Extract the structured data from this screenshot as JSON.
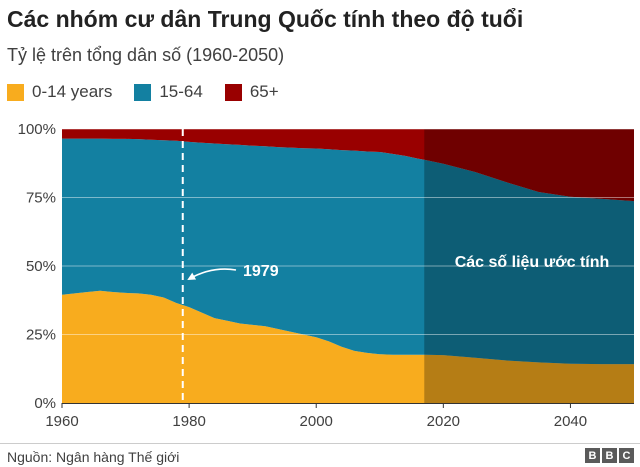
{
  "header": {
    "title": "Các nhóm cư dân Trung Quốc tính theo độ tuổi",
    "subtitle": "Tỷ lệ trên tổng dân số (1960-2050)"
  },
  "legend": [
    {
      "label": "0-14 years",
      "color": "#f8ac1e"
    },
    {
      "label": "15-64",
      "color": "#1380a1"
    },
    {
      "label": "65+",
      "color": "#990000"
    }
  ],
  "chart_data": {
    "type": "area",
    "stacked": true,
    "x": [
      1960,
      1962,
      1964,
      1966,
      1968,
      1970,
      1972,
      1974,
      1976,
      1978,
      1980,
      1982,
      1984,
      1986,
      1988,
      1990,
      1992,
      1994,
      1996,
      1998,
      2000,
      2002,
      2004,
      2006,
      2008,
      2010,
      2012,
      2014,
      2016,
      2017,
      2020,
      2025,
      2030,
      2035,
      2040,
      2045,
      2050
    ],
    "series": [
      {
        "name": "0-14 years",
        "color": "#f8ac1e",
        "values": [
          39.5,
          40.0,
          40.5,
          41.0,
          40.5,
          40.2,
          40.0,
          39.5,
          38.5,
          36.5,
          35.0,
          33.0,
          31.0,
          30.0,
          29.0,
          28.5,
          28.0,
          27.0,
          26.0,
          25.0,
          24.0,
          22.5,
          20.5,
          19.0,
          18.3,
          17.8,
          17.6,
          17.6,
          17.6,
          17.6,
          17.5,
          16.5,
          15.5,
          14.8,
          14.3,
          14.2,
          14.2
        ]
      },
      {
        "name": "15-64",
        "color": "#1380a1",
        "values": [
          57.0,
          56.5,
          56.0,
          55.5,
          55.9,
          56.2,
          56.3,
          56.6,
          57.4,
          59.2,
          60.3,
          62.0,
          63.7,
          64.4,
          65.2,
          65.4,
          65.7,
          66.4,
          67.2,
          68.0,
          68.9,
          70.1,
          71.8,
          73.1,
          73.5,
          73.8,
          73.3,
          72.6,
          71.6,
          71.2,
          69.8,
          67.8,
          65.0,
          62.2,
          61.0,
          60.3,
          59.5
        ]
      },
      {
        "name": "65+",
        "color": "#990000",
        "values": [
          3.5,
          3.5,
          3.5,
          3.5,
          3.6,
          3.6,
          3.7,
          3.9,
          4.1,
          4.3,
          4.7,
          5.0,
          5.3,
          5.6,
          5.8,
          6.1,
          6.3,
          6.6,
          6.8,
          7.0,
          7.1,
          7.4,
          7.7,
          7.9,
          8.2,
          8.4,
          9.1,
          9.8,
          10.8,
          11.2,
          12.7,
          15.7,
          19.5,
          23.0,
          24.7,
          25.5,
          26.3
        ]
      }
    ],
    "xlim": [
      1960,
      2050
    ],
    "ylim": [
      0,
      100
    ],
    "x_ticks": [
      1960,
      1980,
      2000,
      2020,
      2040
    ],
    "y_ticks": [
      0,
      25,
      50,
      75,
      100
    ],
    "y_tick_labels": [
      "0%",
      "25%",
      "50%",
      "75%",
      "100%"
    ],
    "grid": true,
    "legend_position": "top-left",
    "projection_start": 2017,
    "projection_label": "Các số liệu ước tính",
    "annotation": {
      "x": 1979,
      "label": "1979"
    }
  },
  "footer": {
    "source": "Nguồn: Ngân hàng Thế giới",
    "logo_letters": [
      "B",
      "B",
      "C"
    ]
  }
}
